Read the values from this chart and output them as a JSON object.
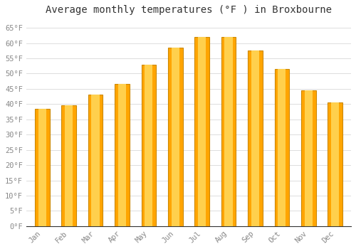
{
  "title": "Average monthly temperatures (°F ) in Broxbourne",
  "months": [
    "Jan",
    "Feb",
    "Mar",
    "Apr",
    "May",
    "Jun",
    "Jul",
    "Aug",
    "Sep",
    "Oct",
    "Nov",
    "Dec"
  ],
  "values": [
    38.5,
    39.5,
    43.0,
    46.5,
    53.0,
    58.5,
    62.0,
    62.0,
    57.5,
    51.5,
    44.5,
    40.5
  ],
  "bar_color_outer": "#FFA500",
  "bar_color_inner": "#FFD04D",
  "bar_edge_color": "#CC8800",
  "background_color": "#FFFFFF",
  "grid_color": "#DDDDDD",
  "yticks": [
    0,
    5,
    10,
    15,
    20,
    25,
    30,
    35,
    40,
    45,
    50,
    55,
    60,
    65
  ],
  "ylim": [
    0,
    68
  ],
  "title_fontsize": 10,
  "tick_fontsize": 7.5,
  "title_color": "#333333",
  "tick_color": "#888888"
}
